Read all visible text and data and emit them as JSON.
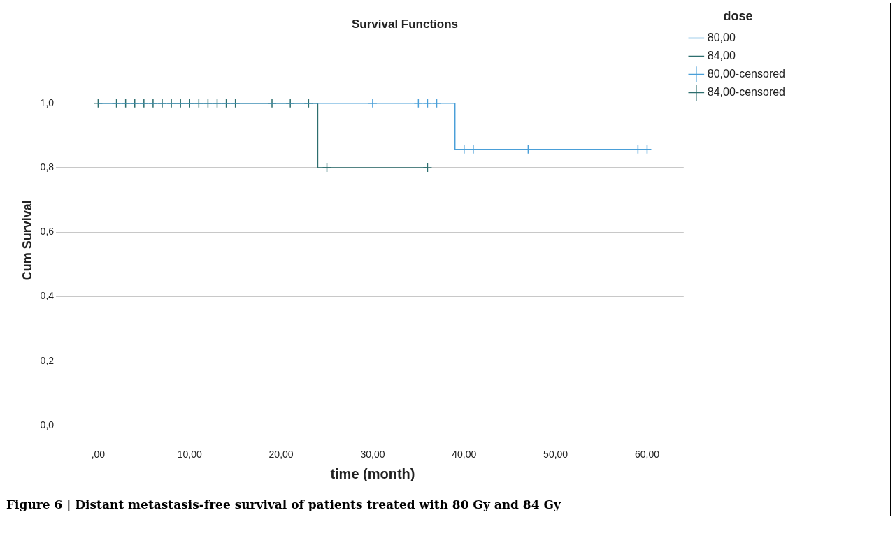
{
  "chart_data": {
    "type": "step",
    "title": "Survival Functions",
    "xlabel": "time (month)",
    "ylabel": "Cum Survival",
    "legend_title": "dose",
    "legend": "right",
    "grid": "y",
    "xlim": [
      -4,
      64
    ],
    "xticks": [
      {
        "value": 0,
        "label": ",00"
      },
      {
        "value": 10,
        "label": "10,00"
      },
      {
        "value": 20,
        "label": "20,00"
      },
      {
        "value": 30,
        "label": "30,00"
      },
      {
        "value": 40,
        "label": "40,00"
      },
      {
        "value": 50,
        "label": "50,00"
      },
      {
        "value": 60,
        "label": "60,00"
      }
    ],
    "ylim": [
      -0.05,
      1.2
    ],
    "yticks": [
      {
        "value": 0,
        "label": "0,0"
      },
      {
        "value": 0.2,
        "label": "0,2"
      },
      {
        "value": 0.4,
        "label": "0,4"
      },
      {
        "value": 0.6,
        "label": "0,6"
      },
      {
        "value": 0.8,
        "label": "0,8"
      },
      {
        "value": 1,
        "label": "1,0"
      }
    ],
    "series": [
      {
        "name": "80,00",
        "color": "#4a9fd8",
        "x": [
          0,
          39,
          60
        ],
        "values": [
          1,
          0.857,
          0.857
        ]
      },
      {
        "name": "84,00",
        "color": "#2d6e6e",
        "x": [
          0,
          24,
          36
        ],
        "values": [
          1,
          0.8,
          0.8
        ]
      },
      {
        "name": "80,00-censored",
        "type": "scatter",
        "marker": "cross",
        "color": "#4a9fd8",
        "x": [
          30,
          35,
          36,
          37,
          40,
          41,
          47,
          59,
          60
        ],
        "values": [
          1,
          1,
          1,
          1,
          0.857,
          0.857,
          0.857,
          0.857,
          0.857
        ]
      },
      {
        "name": "84,00-censored",
        "type": "scatter",
        "marker": "cross",
        "color": "#2d6e6e",
        "x": [
          0,
          2,
          3,
          4,
          5,
          6,
          7,
          8,
          9,
          10,
          11,
          12,
          13,
          14,
          15,
          19,
          21,
          23,
          25,
          36
        ],
        "values": [
          1,
          1,
          1,
          1,
          1,
          1,
          1,
          1,
          1,
          1,
          1,
          1,
          1,
          1,
          1,
          1,
          1,
          1,
          0.8,
          0.8
        ]
      }
    ],
    "annotations": [
      "Figure 6 | Distant metastasis-free survival of patients treated with 80 Gy and 84 Gy"
    ]
  }
}
